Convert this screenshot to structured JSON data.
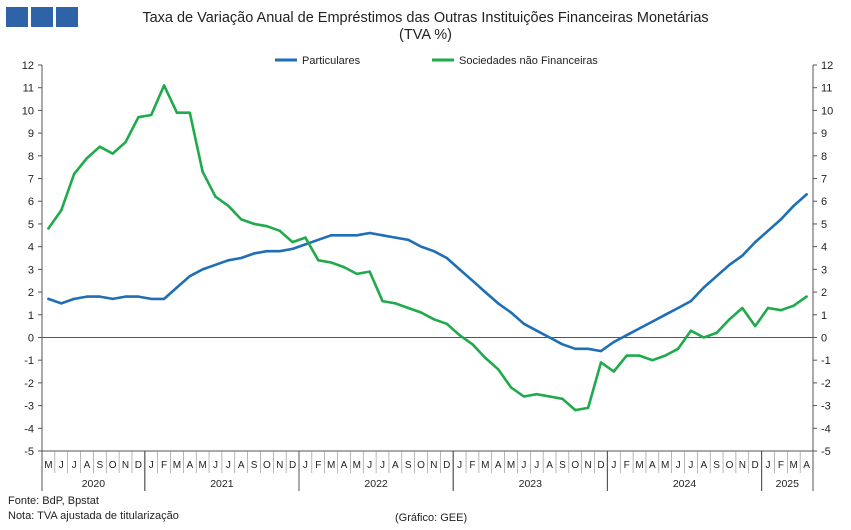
{
  "header": {
    "title": "Taxa de Variação Anual de Empréstimos das Outras Instituições Financeiras Monetárias",
    "subtitle": "(TVA %)"
  },
  "footer": {
    "source": "Fonte: BdP, Bpstat",
    "note": "Nota: TVA ajustada de titularização",
    "credit": "(Gráfico: GEE)"
  },
  "colors": {
    "particulares": "#1f6eb6",
    "sociedades": "#1faa4b",
    "logo": "#2f63a8"
  },
  "chart_data": {
    "type": "line",
    "ylim": [
      -5,
      12
    ],
    "yticks": [
      "-5",
      "-4",
      "-3",
      "-2",
      "-1",
      "0",
      "1",
      "2",
      "3",
      "4",
      "5",
      "6",
      "7",
      "8",
      "9",
      "10",
      "11",
      "12"
    ],
    "legend_position": "top-center",
    "x_months": [
      "M",
      "J",
      "J",
      "A",
      "S",
      "O",
      "N",
      "D",
      "J",
      "F",
      "M",
      "A",
      "M",
      "J",
      "J",
      "A",
      "S",
      "O",
      "N",
      "D",
      "J",
      "F",
      "M",
      "A",
      "M",
      "J",
      "J",
      "A",
      "S",
      "O",
      "N",
      "D",
      "J",
      "F",
      "M",
      "A",
      "M",
      "J",
      "J",
      "A",
      "S",
      "O",
      "N",
      "D",
      "J",
      "F",
      "M",
      "A",
      "M",
      "J",
      "J",
      "A",
      "S",
      "O",
      "N",
      "D",
      "J",
      "F",
      "M",
      "A"
    ],
    "years": [
      {
        "label": "2020",
        "start": 0,
        "end": 7
      },
      {
        "label": "2021",
        "start": 8,
        "end": 19
      },
      {
        "label": "2022",
        "start": 20,
        "end": 31
      },
      {
        "label": "2023",
        "start": 32,
        "end": 43
      },
      {
        "label": "2024",
        "start": 44,
        "end": 55
      },
      {
        "label": "2025",
        "start": 56,
        "end": 59
      }
    ],
    "series": [
      {
        "name": "Particulares",
        "values": [
          1.7,
          1.5,
          1.7,
          1.8,
          1.8,
          1.7,
          1.8,
          1.8,
          1.7,
          1.7,
          2.2,
          2.7,
          3.0,
          3.2,
          3.4,
          3.5,
          3.7,
          3.8,
          3.8,
          3.9,
          4.1,
          4.3,
          4.5,
          4.5,
          4.5,
          4.6,
          4.5,
          4.4,
          4.3,
          4.0,
          3.8,
          3.5,
          3.0,
          2.5,
          2.0,
          1.5,
          1.1,
          0.6,
          0.3,
          0.0,
          -0.3,
          -0.5,
          -0.5,
          -0.6,
          -0.2,
          0.1,
          0.4,
          0.7,
          1.0,
          1.3,
          1.6,
          2.2,
          2.7,
          3.2,
          3.6,
          4.2,
          4.7,
          5.2,
          5.8,
          6.3
        ]
      },
      {
        "name": "Sociedades não Financeiras",
        "values": [
          4.8,
          5.6,
          7.2,
          7.9,
          8.4,
          8.1,
          8.6,
          9.7,
          9.8,
          11.1,
          9.9,
          9.9,
          7.3,
          6.2,
          5.8,
          5.2,
          5.0,
          4.9,
          4.7,
          4.2,
          4.4,
          3.4,
          3.3,
          3.1,
          2.8,
          2.9,
          1.6,
          1.5,
          1.3,
          1.1,
          0.8,
          0.6,
          0.1,
          -0.3,
          -0.9,
          -1.4,
          -2.2,
          -2.6,
          -2.5,
          -2.6,
          -2.7,
          -3.2,
          -3.1,
          -1.1,
          -1.5,
          -0.8,
          -0.8,
          -1.0,
          -0.8,
          -0.5,
          0.3,
          0.0,
          0.2,
          0.8,
          1.3,
          0.5,
          1.3,
          1.2,
          1.4,
          1.8
        ]
      }
    ]
  }
}
